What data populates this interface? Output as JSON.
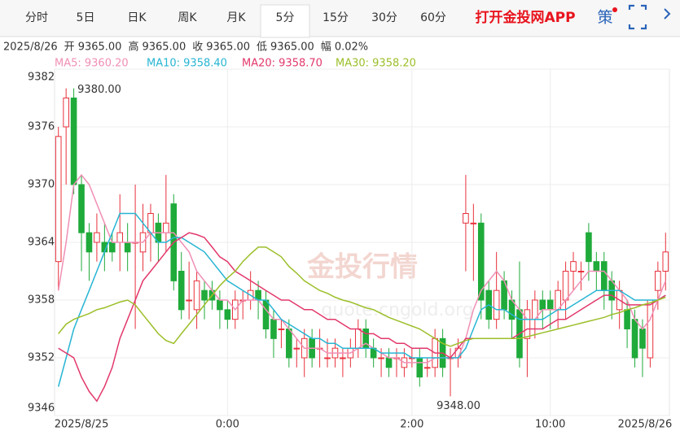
{
  "header": {
    "tabs": [
      "分时",
      "5日",
      "日K",
      "周K",
      "月K",
      "5分",
      "15分",
      "30分",
      "60分"
    ],
    "active_tab": 5,
    "app_link": "打开金投网APP",
    "strategy": "策"
  },
  "info": {
    "date": "2025/8/26",
    "items": [
      {
        "label": "开",
        "value": "9365.00"
      },
      {
        "label": "高",
        "value": "9365.00"
      },
      {
        "label": "收",
        "value": "9365.00"
      },
      {
        "label": "低",
        "value": "9365.00"
      },
      {
        "label": "幅",
        "value": "0.02%"
      }
    ]
  },
  "watermark": {
    "brand": "金投行情",
    "site": "quote.cngold.org"
  },
  "chart_data": {
    "type": "candlestick",
    "categories": [
      null,
      null,
      null,
      "2025/8/25",
      null,
      null,
      null,
      null,
      null,
      null,
      null,
      null,
      null,
      null,
      null,
      null,
      null,
      null,
      null,
      null,
      null,
      null,
      "0:00",
      null,
      null,
      null,
      null,
      null,
      null,
      null,
      null,
      null,
      null,
      null,
      null,
      null,
      null,
      null,
      null,
      null,
      null,
      null,
      null,
      null,
      null,
      null,
      "2:00",
      null,
      null,
      null,
      null,
      null,
      null,
      null,
      null,
      null,
      null,
      null,
      null,
      null,
      null,
      null,
      null,
      null,
      "10:00",
      null,
      null,
      null,
      null,
      null,
      null,
      null,
      null,
      null,
      null,
      null,
      null,
      "2025/8/26",
      null,
      null
    ],
    "open": [
      9362,
      9376,
      9379,
      9370,
      9365,
      9364,
      9364,
      9364,
      9364,
      9364,
      9364,
      9363,
      9365,
      9366,
      9365,
      9368,
      9361,
      9358,
      9357,
      9359,
      9359,
      9358,
      9357,
      9356,
      9358,
      9358,
      9359,
      9358,
      9356,
      9355,
      9355,
      9353,
      9352,
      9354,
      9353,
      9352,
      9352,
      9352,
      9352,
      9353,
      9355,
      9353,
      9352,
      9352,
      9352,
      9351,
      9352,
      9352,
      9351,
      9351,
      9354,
      9352,
      9352,
      9366,
      9366,
      9366,
      9359,
      9356,
      9360,
      9358,
      9357,
      9354,
      9356,
      9358,
      9358,
      9357,
      9358,
      9361,
      9361,
      9365,
      9362,
      9362,
      9360,
      9357,
      9357,
      9356,
      9355,
      9352,
      9359,
      9361
    ],
    "high": [
      9376,
      9380,
      9380,
      9371,
      9366,
      9367,
      9366,
      9365,
      9369,
      9366,
      9370,
      9368,
      9368,
      9367,
      9371,
      9369,
      9363,
      9362,
      9361,
      9360,
      9360,
      9359,
      9358,
      9359,
      9359,
      9361,
      9360,
      9359,
      9357,
      9356,
      9356,
      9354,
      9355,
      9355,
      9355,
      9354,
      9354,
      9353,
      9354,
      9356,
      9356,
      9354,
      9353,
      9353,
      9353,
      9353,
      9353,
      9353,
      9352,
      9355,
      9355,
      9353,
      9354,
      9371,
      9368,
      9367,
      9360,
      9363,
      9361,
      9359,
      9362,
      9358,
      9359,
      9359,
      9359,
      9360,
      9362,
      9363,
      9362,
      9366,
      9363,
      9363,
      9361,
      9360,
      9358,
      9357,
      9356,
      9358,
      9362,
      9365
    ],
    "low": [
      9359,
      9370,
      9369,
      9361,
      9360,
      9362,
      9361,
      9362,
      9361,
      9361,
      9355,
      9361,
      9362,
      9362,
      9363,
      9359,
      9356,
      9356,
      9355,
      9356,
      9357,
      9355,
      9355,
      9355,
      9356,
      9357,
      9356,
      9354,
      9352,
      9353,
      9351,
      9351,
      9350,
      9351,
      9351,
      9351,
      9351,
      9350,
      9351,
      9352,
      9352,
      9351,
      9350,
      9350,
      9350,
      9350,
      9351,
      9349,
      9350,
      9350,
      9350,
      9348,
      9351,
      9361,
      9360,
      9356,
      9355,
      9355,
      9356,
      9354,
      9351,
      9350,
      9354,
      9355,
      9355,
      9355,
      9356,
      9359,
      9359,
      9360,
      9359,
      9357,
      9356,
      9355,
      9353,
      9351,
      9350,
      9351,
      9357,
      9359
    ],
    "close": [
      9375,
      9379,
      9370,
      9365,
      9363,
      9365,
      9363,
      9363,
      9365,
      9363,
      9364,
      9365,
      9367,
      9364,
      9366,
      9360,
      9357,
      9358,
      9360,
      9358,
      9358,
      9357,
      9356,
      9358,
      9358,
      9359,
      9358,
      9355,
      9354,
      9355,
      9352,
      9353,
      9354,
      9352,
      9353,
      9352,
      9353,
      9352,
      9353,
      9355,
      9353,
      9352,
      9352,
      9351,
      9352,
      9352,
      9352,
      9350,
      9351,
      9354,
      9351,
      9352,
      9353,
      9367,
      9366,
      9358,
      9356,
      9359,
      9357,
      9356,
      9352,
      9357,
      9358,
      9357,
      9357,
      9359,
      9361,
      9362,
      9361,
      9362,
      9361,
      9359,
      9358,
      9359,
      9355,
      9352,
      9353,
      9358,
      9361,
      9363
    ],
    "up_color": "#e8313c",
    "down_color": "#1faa3a",
    "ylim": [
      9346,
      9382
    ],
    "yticks": [
      9346,
      9352,
      9358,
      9364,
      9370,
      9376,
      9382
    ],
    "grid": true,
    "annotations": [
      {
        "value": 9380,
        "label": "9380.00",
        "kind": "high"
      },
      {
        "value": 9348,
        "label": "9348.00",
        "kind": "low"
      }
    ],
    "series": [
      {
        "name": "MA5: 9360.20",
        "color": "#f08fb5",
        "values": [
          9359,
          9364,
          9370,
          9371,
          9370,
          9368,
          9366,
          9364,
          9364,
          9364,
          9364,
          9364,
          9365,
          9365,
          9365,
          9365,
          9364,
          9363,
          9361,
          9360,
          9359,
          9358,
          9358,
          9357,
          9358,
          9358,
          9358,
          9357,
          9356,
          9356,
          9355,
          9354,
          9353,
          9353,
          9353,
          9352.5,
          9352.5,
          9352.5,
          9352.5,
          9353,
          9353.5,
          9353,
          9352.5,
          9352,
          9352,
          9351.5,
          9351.5,
          9351.5,
          9351.5,
          9352,
          9352,
          9352,
          9352,
          9354,
          9357,
          9359,
          9360,
          9361,
          9360,
          9358,
          9357,
          9356,
          9356,
          9357,
          9357,
          9357,
          9358,
          9359,
          9360,
          9361,
          9361,
          9361,
          9360,
          9359,
          9358,
          9356,
          9355,
          9356,
          9358,
          9360
        ]
      },
      {
        "name": "MA10: 9358.40",
        "color": "#27b5d3",
        "values": [
          9349,
          9352,
          9355,
          9357,
          9359,
          9361,
          9363,
          9365,
          9367,
          9367,
          9367,
          9366,
          9365,
          9364,
          9364,
          9364.5,
          9364.5,
          9364,
          9363.5,
          9363,
          9362,
          9361,
          9360,
          9359.5,
          9359,
          9358.5,
          9358,
          9358,
          9357,
          9356,
          9355.5,
          9355,
          9354.5,
          9354,
          9354,
          9353.5,
          9353.5,
          9353,
          9353,
          9353,
          9353,
          9353,
          9352.5,
          9352.5,
          9352.5,
          9352.5,
          9352,
          9352,
          9352,
          9352,
          9352,
          9352,
          9352,
          9353,
          9355,
          9357,
          9357.5,
          9357,
          9357,
          9356.5,
          9356,
          9356,
          9356,
          9356,
          9356.5,
          9357,
          9357,
          9357.5,
          9358,
          9358.5,
          9359,
          9359,
          9359,
          9359,
          9358.5,
          9358,
          9358,
          9358,
          9358,
          9358.5
        ]
      },
      {
        "name": "MA20: 9358.70",
        "color": "#e2386b",
        "values": [
          9353,
          9352.5,
          9352,
          9350,
          9348.5,
          9347.5,
          9349,
          9351,
          9354,
          9356,
          9358,
          9360,
          9361,
          9362,
          9363,
          9364,
          9364.5,
          9365,
          9364.8,
          9364.5,
          9363.5,
          9362.5,
          9362,
          9361,
          9360.5,
          9360,
          9359.5,
          9359,
          9358.5,
          9358,
          9358,
          9357.5,
          9357,
          9357,
          9356.5,
          9356,
          9356,
          9355.5,
          9355,
          9355,
          9354.5,
          9354.5,
          9354,
          9354,
          9353.5,
          9353.5,
          9353,
          9353,
          9353,
          9352.5,
          9352.5,
          9352,
          9353,
          9354,
          9354,
          9354,
          9354,
          9354,
          9354,
          9354,
          9354.5,
          9355,
          9355,
          9355,
          9355.5,
          9356,
          9356,
          9356.5,
          9357,
          9357.5,
          9358,
          9358.5,
          9358.5,
          9358,
          9357.5,
          9357.5,
          9357.5,
          9357.5,
          9358,
          9358.5
        ]
      },
      {
        "name": "MA30: 9358.20",
        "color": "#9cbf2a",
        "values": [
          9354.5,
          9355.5,
          9356,
          9356.3,
          9356.6,
          9357,
          9357.2,
          9357.5,
          9357.8,
          9358,
          9357.5,
          9356.5,
          9355.5,
          9354.5,
          9353.8,
          9353.5,
          9354.5,
          9355.5,
          9356.5,
          9357.5,
          9358.5,
          9359.5,
          9360.3,
          9361,
          9362,
          9362.8,
          9363.5,
          9363.5,
          9363,
          9362.5,
          9361.5,
          9360.8,
          9360,
          9359.5,
          9359,
          9358.7,
          9358.3,
          9358,
          9357.8,
          9357.5,
          9357.2,
          9357,
          9356.6,
          9356.2,
          9355.9,
          9355.6,
          9355.3,
          9355,
          9354.5,
          9354,
          9353.5,
          9353.2,
          9353.5,
          9353.8,
          9354,
          9354,
          9354,
          9354,
          9354,
          9354,
          9354,
          9354.2,
          9354.4,
          9354.6,
          9354.8,
          9355,
          9355.2,
          9355.4,
          9355.6,
          9355.8,
          9356,
          9356.2,
          9356.5,
          9356.7,
          9357,
          9357.2,
          9357.5,
          9357.7,
          9358,
          9358.3
        ]
      }
    ]
  }
}
